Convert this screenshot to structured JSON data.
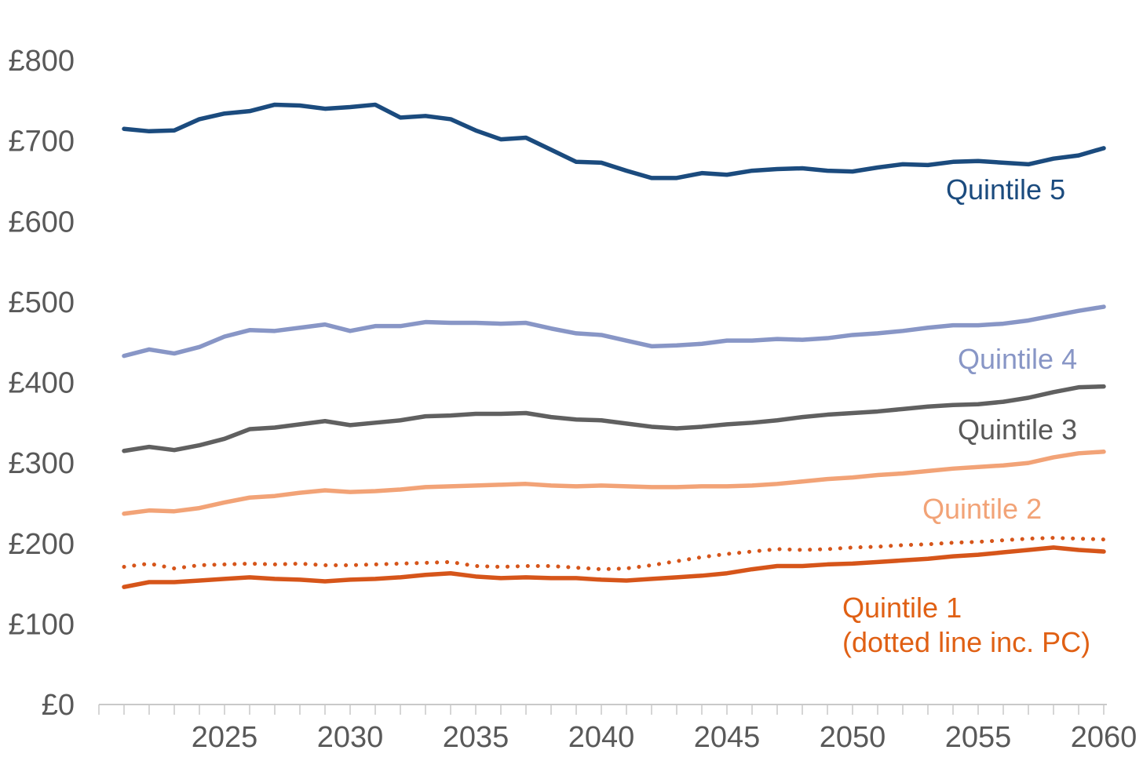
{
  "chart_data": {
    "type": "line",
    "title": "",
    "xlabel": "",
    "ylabel": "",
    "currency": "£",
    "grid": false,
    "background": "#FFFFFF",
    "axis_color": "#C9C9C9",
    "tick_label_color": "#595959",
    "xlim": [
      2020,
      2060
    ],
    "ylim": [
      0,
      800
    ],
    "x": [
      2021,
      2022,
      2023,
      2024,
      2025,
      2026,
      2027,
      2028,
      2029,
      2030,
      2031,
      2032,
      2033,
      2034,
      2035,
      2036,
      2037,
      2038,
      2039,
      2040,
      2041,
      2042,
      2043,
      2044,
      2045,
      2046,
      2047,
      2048,
      2049,
      2050,
      2051,
      2052,
      2053,
      2054,
      2055,
      2056,
      2057,
      2058,
      2059,
      2060
    ],
    "x_ticks": [
      {
        "label": "2025",
        "year": 2025
      },
      {
        "label": "2030",
        "year": 2030
      },
      {
        "label": "2035",
        "year": 2035
      },
      {
        "label": "2040",
        "year": 2040
      },
      {
        "label": "2045",
        "year": 2045
      },
      {
        "label": "2050",
        "year": 2050
      },
      {
        "label": "2055",
        "year": 2055
      },
      {
        "label": "2060",
        "year": 2060
      }
    ],
    "minor_x_ticks_every_year": true,
    "y_ticks": [
      {
        "label": "£0",
        "value": 0
      },
      {
        "label": "£100",
        "value": 100
      },
      {
        "label": "£200",
        "value": 200
      },
      {
        "label": "£300",
        "value": 300
      },
      {
        "label": "£400",
        "value": 400
      },
      {
        "label": "£500",
        "value": 500
      },
      {
        "label": "£600",
        "value": 600
      },
      {
        "label": "£700",
        "value": 700
      },
      {
        "label": "£800",
        "value": 800
      }
    ],
    "series": [
      {
        "name": "Quintile 5",
        "legend_label": "Quintile 5",
        "color": "#1B4B7E",
        "label_color": "#1B4B7E",
        "line_style": "solid",
        "values": [
          715,
          712,
          713,
          727,
          734,
          737,
          745,
          744,
          740,
          742,
          745,
          729,
          731,
          727,
          713,
          702,
          704,
          689,
          674,
          673,
          663,
          654,
          654,
          660,
          658,
          663,
          665,
          666,
          663,
          662,
          667,
          671,
          670,
          674,
          675,
          673,
          671,
          678,
          682,
          691
        ]
      },
      {
        "name": "Quintile 4",
        "legend_label": "Quintile 4",
        "color": "#8896C6",
        "label_color": "#8896C6",
        "line_style": "solid",
        "values": [
          433,
          441,
          436,
          444,
          457,
          465,
          464,
          468,
          472,
          464,
          470,
          470,
          475,
          474,
          474,
          473,
          474,
          467,
          461,
          459,
          452,
          445,
          446,
          448,
          452,
          452,
          454,
          453,
          455,
          459,
          461,
          464,
          468,
          471,
          471,
          473,
          477,
          483,
          489,
          494
        ]
      },
      {
        "name": "Quintile 3",
        "legend_label": "Quintile 3",
        "color": "#606060",
        "label_color": "#595959",
        "line_style": "solid",
        "values": [
          315,
          320,
          316,
          322,
          330,
          342,
          344,
          348,
          352,
          347,
          350,
          353,
          358,
          359,
          361,
          361,
          362,
          357,
          354,
          353,
          349,
          345,
          343,
          345,
          348,
          350,
          353,
          357,
          360,
          362,
          364,
          367,
          370,
          372,
          373,
          376,
          381,
          388,
          394,
          395
        ]
      },
      {
        "name": "Quintile 2",
        "legend_label": "Quintile 2",
        "color": "#F2A377",
        "label_color": "#F2A377",
        "line_style": "solid",
        "values": [
          237,
          241,
          240,
          244,
          251,
          257,
          259,
          263,
          266,
          264,
          265,
          267,
          270,
          271,
          272,
          273,
          274,
          272,
          271,
          272,
          271,
          270,
          270,
          271,
          271,
          272,
          274,
          277,
          280,
          282,
          285,
          287,
          290,
          293,
          295,
          297,
          300,
          307,
          312,
          314
        ]
      },
      {
        "name": "Quintile 1 (inc. PC)",
        "legend_label": "(dotted line inc. PC)",
        "color": "#D6551A",
        "label_color": "#E06014",
        "line_style": "dotted",
        "values": [
          171,
          175,
          169,
          173,
          174,
          175,
          174,
          175,
          173,
          173,
          174,
          175,
          176,
          177,
          172,
          171,
          172,
          172,
          170,
          168,
          169,
          173,
          178,
          183,
          187,
          190,
          193,
          192,
          193,
          195,
          196,
          198,
          199,
          201,
          202,
          204,
          206,
          207,
          206,
          205
        ]
      },
      {
        "name": "Quintile 1",
        "legend_label": "Quintile 1",
        "color": "#D6551A",
        "label_color": "#E06014",
        "line_style": "solid",
        "values": [
          146,
          152,
          152,
          154,
          156,
          158,
          156,
          155,
          153,
          155,
          156,
          158,
          161,
          163,
          159,
          157,
          158,
          157,
          157,
          155,
          154,
          156,
          158,
          160,
          163,
          168,
          172,
          172,
          174,
          175,
          177,
          179,
          181,
          184,
          186,
          189,
          192,
          195,
          192,
          190
        ]
      }
    ],
    "annotations": {
      "quintile5": "Quintile 5",
      "quintile4": "Quintile 4",
      "quintile3": "Quintile 3",
      "quintile2": "Quintile 2",
      "quintile1_line1": "Quintile 1",
      "quintile1_line2": "(dotted line inc. PC)"
    }
  }
}
